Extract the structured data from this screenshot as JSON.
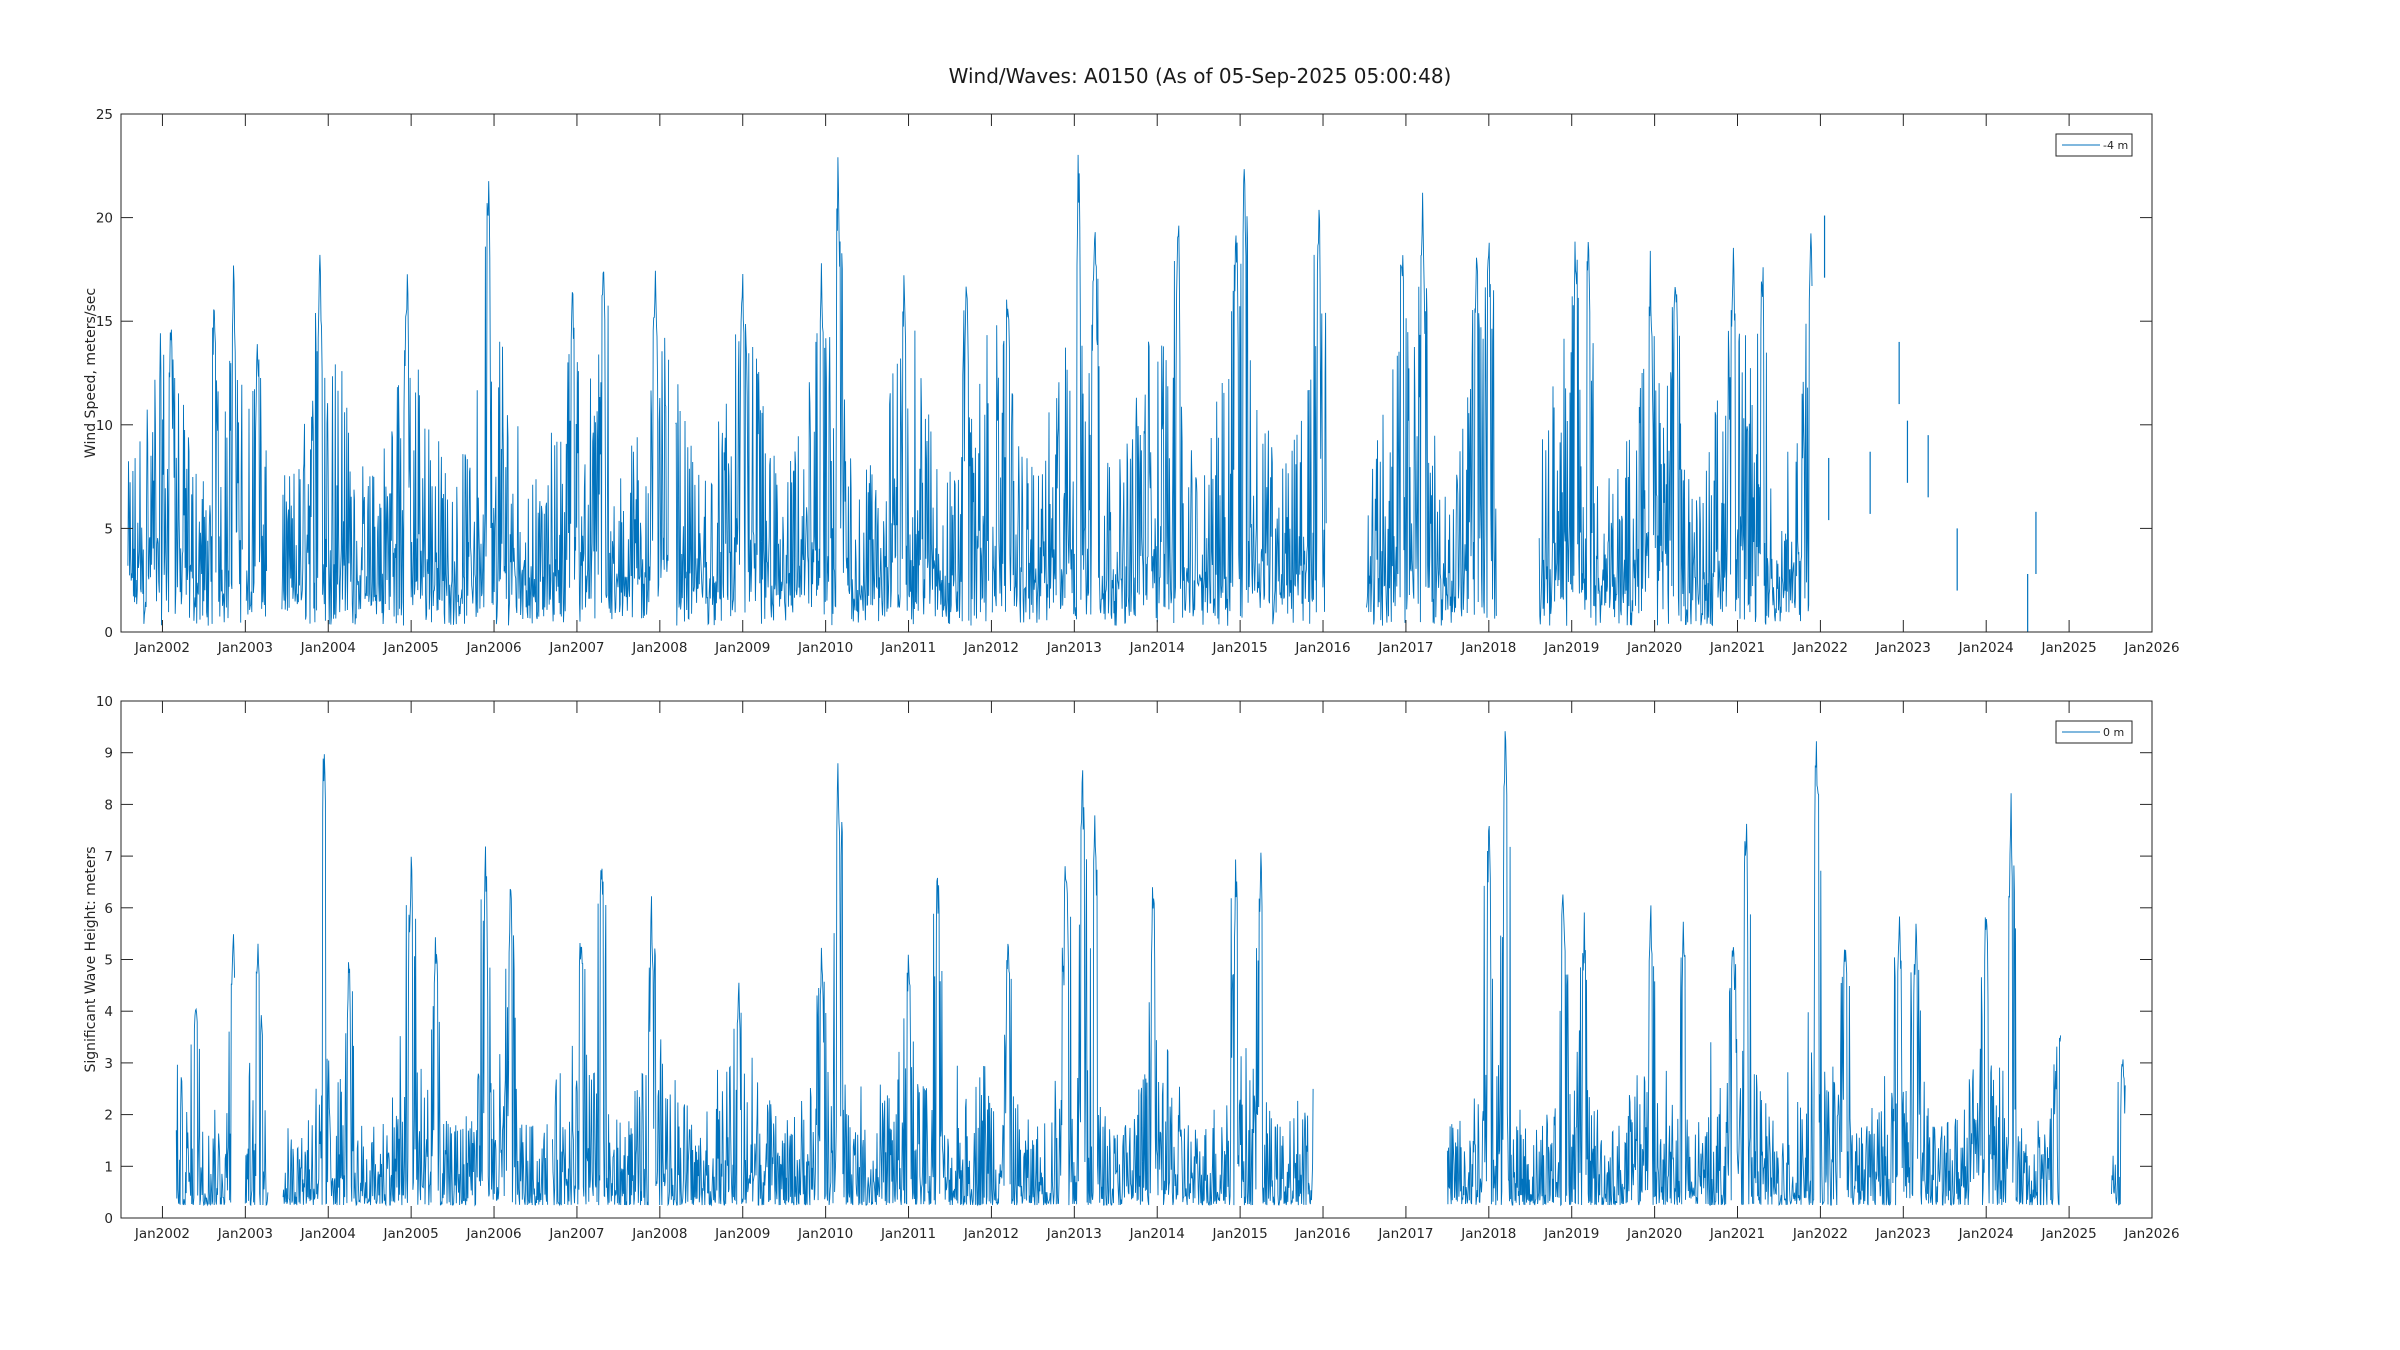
{
  "title": "Wind/Waves: A0150 (As of 05-Sep-2025 05:00:48)",
  "colors": {
    "series": "#0072BD",
    "axis": "#262626",
    "background": "#ffffff"
  },
  "chart_data": [
    {
      "type": "line",
      "ylabel": "Wind Speed, meters/sec",
      "xlabel": "",
      "xlim": [
        "2001-07-01",
        "2026-01-01"
      ],
      "ylim": [
        0,
        25
      ],
      "yticks": [
        0,
        5,
        10,
        15,
        20,
        25
      ],
      "xticks": [
        "Jan2002",
        "Jan2003",
        "Jan2004",
        "Jan2005",
        "Jan2006",
        "Jan2007",
        "Jan2008",
        "Jan2009",
        "Jan2010",
        "Jan2011",
        "Jan2012",
        "Jan2013",
        "Jan2014",
        "Jan2015",
        "Jan2016",
        "Jan2017",
        "Jan2018",
        "Jan2019",
        "Jan2020",
        "Jan2021",
        "Jan2022",
        "Jan2023",
        "Jan2024",
        "Jan2025",
        "Jan2026"
      ],
      "grid": false,
      "legend": {
        "position": "top-right",
        "entries": [
          "-4 m"
        ]
      },
      "series": [
        {
          "name": "-4 m",
          "segments": [
            {
              "start": "2001-08-01",
              "end": "2002-12-20",
              "typical_max": 13.5,
              "peaks": [
                [
                  2002.1,
                  15.7
                ],
                [
                  2002.62,
                  16.7
                ],
                [
                  2002.86,
                  18.2
                ]
              ]
            },
            {
              "start": "2003-01-05",
              "end": "2003-04-05",
              "typical_max": 12.5,
              "peaks": [
                [
                  2003.15,
                  15.0
                ]
              ]
            },
            {
              "start": "2003-06-10",
              "end": "2008-02-10",
              "typical_max": 13.5,
              "peaks": [
                [
                  2003.9,
                  19.5
                ],
                [
                  2004.95,
                  18.0
                ],
                [
                  2005.93,
                  23.7
                ],
                [
                  2006.95,
                  17.3
                ],
                [
                  2007.32,
                  19.4
                ],
                [
                  2007.95,
                  18.0
                ]
              ]
            },
            {
              "start": "2008-03-10",
              "end": "2011-12-20",
              "typical_max": 14.0,
              "peaks": [
                [
                  2009.0,
                  18.2
                ],
                [
                  2009.95,
                  19.2
                ],
                [
                  2010.15,
                  23.3
                ],
                [
                  2010.95,
                  18.4
                ],
                [
                  2011.7,
                  19.0
                ]
              ]
            },
            {
              "start": "2012-01-05",
              "end": "2016-01-15",
              "typical_max": 14.5,
              "peaks": [
                [
                  2012.2,
                  18.5
                ],
                [
                  2013.05,
                  24.0
                ],
                [
                  2013.25,
                  21.0
                ],
                [
                  2014.25,
                  21.8
                ],
                [
                  2014.95,
                  21.5
                ],
                [
                  2015.05,
                  24.4
                ],
                [
                  2015.95,
                  22.4
                ]
              ]
            },
            {
              "start": "2016-07-10",
              "end": "2018-02-05",
              "typical_max": 14.0,
              "peaks": [
                [
                  2016.95,
                  20.5
                ],
                [
                  2017.2,
                  21.5
                ],
                [
                  2017.85,
                  19.9
                ],
                [
                  2018.0,
                  20.0
                ]
              ]
            },
            {
              "start": "2018-08-10",
              "end": "2021-11-25",
              "typical_max": 14.0,
              "peaks": [
                [
                  2019.05,
                  20.7
                ],
                [
                  2019.2,
                  21.1
                ],
                [
                  2019.95,
                  18.7
                ],
                [
                  2020.25,
                  19.2
                ],
                [
                  2020.95,
                  18.7
                ],
                [
                  2021.3,
                  18.9
                ],
                [
                  2021.88,
                  21.0
                ]
              ]
            }
          ],
          "sparse_points": [
            [
              2022.05,
              20.1
            ],
            [
              2022.1,
              8.4
            ],
            [
              2022.6,
              8.7
            ],
            [
              2022.95,
              14.0
            ],
            [
              2023.05,
              10.2
            ],
            [
              2023.3,
              9.5
            ],
            [
              2023.65,
              5.0
            ],
            [
              2024.6,
              5.8
            ],
            [
              2024.5,
              2.8
            ]
          ]
        }
      ]
    },
    {
      "type": "line",
      "ylabel": "Significant Wave Height:  meters",
      "xlabel": "",
      "xlim": [
        "2001-07-01",
        "2026-01-01"
      ],
      "ylim": [
        0,
        10
      ],
      "yticks": [
        0,
        1,
        2,
        3,
        4,
        5,
        6,
        7,
        8,
        9,
        10
      ],
      "xticks": [
        "Jan2002",
        "Jan2003",
        "Jan2004",
        "Jan2005",
        "Jan2006",
        "Jan2007",
        "Jan2008",
        "Jan2009",
        "Jan2010",
        "Jan2011",
        "Jan2012",
        "Jan2013",
        "Jan2014",
        "Jan2015",
        "Jan2016",
        "Jan2017",
        "Jan2018",
        "Jan2019",
        "Jan2020",
        "Jan2021",
        "Jan2022",
        "Jan2023",
        "Jan2024",
        "Jan2025",
        "Jan2026"
      ],
      "grid": false,
      "legend": {
        "position": "top-right",
        "entries": [
          "0 m"
        ]
      },
      "series": [
        {
          "name": "0 m",
          "segments": [
            {
              "start": "2002-03-01",
              "end": "2002-11-15",
              "typical_max": 2.5,
              "peaks": [
                [
                  2002.4,
                  4.7
                ],
                [
                  2002.85,
                  5.9
                ]
              ]
            },
            {
              "start": "2003-01-01",
              "end": "2003-04-10",
              "typical_max": 2.3,
              "peaks": [
                [
                  2003.15,
                  5.6
                ]
              ]
            },
            {
              "start": "2003-06-15",
              "end": "2006-08-25",
              "typical_max": 2.4,
              "peaks": [
                [
                  2003.95,
                  10.0
                ],
                [
                  2004.25,
                  5.2
                ],
                [
                  2005.0,
                  7.4
                ],
                [
                  2005.3,
                  5.8
                ],
                [
                  2005.9,
                  7.4
                ],
                [
                  2006.2,
                  6.7
                ]
              ]
            },
            {
              "start": "2006-09-15",
              "end": "2015-11-20",
              "typical_max": 2.5,
              "peaks": [
                [
                  2007.05,
                  6.0
                ],
                [
                  2007.3,
                  7.9
                ],
                [
                  2007.9,
                  6.3
                ],
                [
                  2008.95,
                  4.8
                ],
                [
                  2009.95,
                  5.6
                ],
                [
                  2010.15,
                  9.2
                ],
                [
                  2011.0,
                  5.5
                ],
                [
                  2011.35,
                  7.2
                ],
                [
                  2012.2,
                  5.7
                ],
                [
                  2012.9,
                  7.5
                ],
                [
                  2013.1,
                  9.1
                ],
                [
                  2013.25,
                  8.0
                ],
                [
                  2013.95,
                  6.9
                ],
                [
                  2014.95,
                  7.4
                ],
                [
                  2015.25,
                  7.6
                ]
              ]
            },
            {
              "start": "2017-07-01",
              "end": "2024-11-25",
              "typical_max": 2.5,
              "peaks": [
                [
                  2018.0,
                  8.2
                ],
                [
                  2018.2,
                  9.8
                ],
                [
                  2018.9,
                  7.0
                ],
                [
                  2019.15,
                  6.1
                ],
                [
                  2019.95,
                  6.5
                ],
                [
                  2020.35,
                  6.0
                ],
                [
                  2020.95,
                  5.8
                ],
                [
                  2021.1,
                  8.5
                ],
                [
                  2021.95,
                  9.8
                ],
                [
                  2022.3,
                  5.7
                ],
                [
                  2022.95,
                  6.2
                ],
                [
                  2023.15,
                  6.0
                ],
                [
                  2024.0,
                  6.8
                ],
                [
                  2024.3,
                  8.6
                ],
                [
                  2024.9,
                  4.0
                ]
              ]
            },
            {
              "start": "2025-07-05",
              "end": "2025-09-05",
              "typical_max": 1.5,
              "peaks": [
                [
                  2025.65,
                  3.4
                ]
              ]
            }
          ],
          "sparse_points": []
        }
      ]
    }
  ]
}
